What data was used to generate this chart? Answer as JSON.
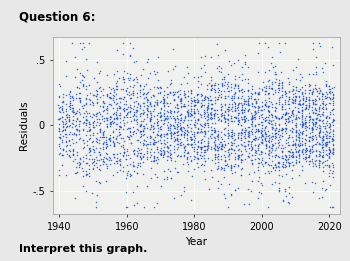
{
  "title": "Question 6:",
  "xlabel": "Year",
  "ylabel": "Residuals",
  "xlim": [
    1938,
    2023
  ],
  "ylim": [
    -0.68,
    0.68
  ],
  "yticks": [
    -0.5,
    0.0,
    0.5
  ],
  "ytick_labels": [
    "-.5",
    "0",
    ".5"
  ],
  "xticks": [
    1940,
    1960,
    1980,
    2000,
    2020
  ],
  "dot_color": "#2255cc",
  "dot_size": 1.2,
  "background_color": "#e8e8e8",
  "plot_bg_color": "#f0f0ee",
  "footer_text": "Interpret this graph.",
  "seed": 42,
  "year_start": 1940,
  "year_end": 2022,
  "points_per_year_early": 30,
  "points_per_year_late": 52
}
